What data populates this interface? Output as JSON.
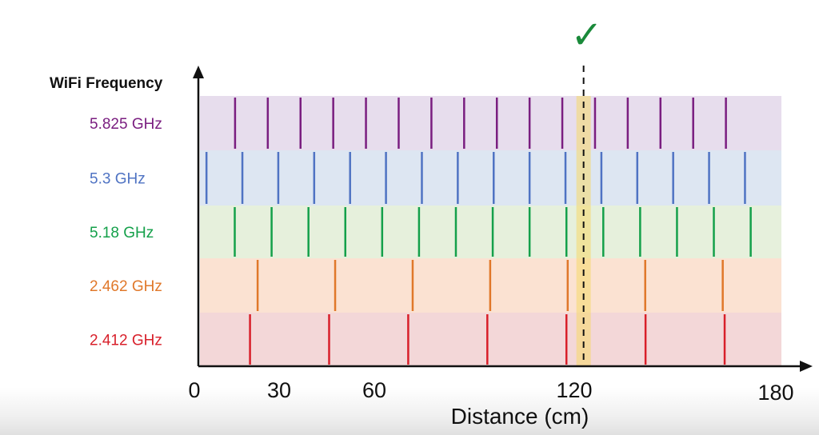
{
  "figure": {
    "axis_title_y": "WiFi Frequency",
    "axis_title_x": "Distance (cm)",
    "check_mark": "✓"
  },
  "chart_data": {
    "type": "diagram",
    "x_ticks": [
      0,
      30,
      60,
      120,
      180
    ],
    "xlim": [
      0,
      180
    ],
    "highlight_x": 120,
    "bands": [
      {
        "label": "5.825 GHz",
        "color": "#7a1e80",
        "bg": "#e7dded",
        "marks": [
          10.3,
          20.6,
          30.9,
          41.2,
          51.5,
          61.8,
          72.1,
          82.4,
          92.7,
          103.0,
          113.3,
          123.6,
          133.9,
          144.2,
          154.5,
          164.8
        ]
      },
      {
        "label": "5.3 GHz",
        "color": "#4f73c3",
        "bg": "#dde6f2",
        "marks": [
          1.3,
          12.6,
          23.9,
          35.2,
          46.5,
          57.8,
          69.1,
          80.4,
          91.7,
          103.0,
          114.3,
          125.6,
          136.9,
          148.2,
          159.5,
          170.8
        ]
      },
      {
        "label": "5.18 GHz",
        "color": "#14a04a",
        "bg": "#e6f0dc",
        "marks": [
          10.2,
          21.8,
          33.4,
          45.0,
          56.6,
          68.2,
          79.8,
          91.4,
          103.0,
          114.6,
          126.2,
          137.8,
          149.4,
          161.0,
          172.6
        ]
      },
      {
        "label": "2.462 GHz",
        "color": "#e0782a",
        "bg": "#fbe2d2",
        "marks": [
          17.4,
          41.8,
          66.2,
          90.6,
          115.0,
          139.4,
          163.8
        ]
      },
      {
        "label": "2.412 GHz",
        "color": "#d81f2a",
        "bg": "#f3d7d8",
        "marks": [
          15.0,
          39.9,
          64.8,
          89.7,
          114.6,
          139.5,
          164.4
        ]
      }
    ]
  }
}
